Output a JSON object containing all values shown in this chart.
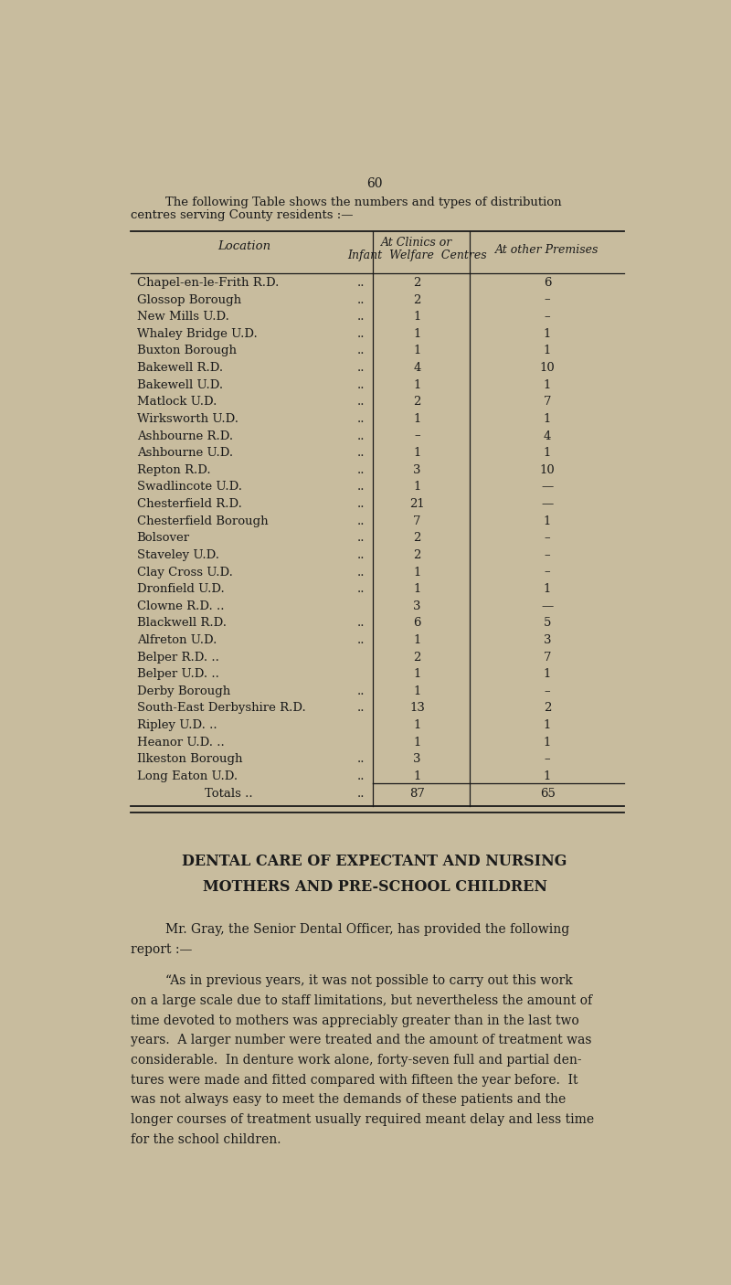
{
  "page_number": "60",
  "intro_text_line1": "The following Table shows the numbers and types of distribution",
  "intro_text_line2": "centres serving County residents :—",
  "col_header1_line1": "At Clinics or",
  "col_header1_line2": "Infant  Welfare  Centres",
  "col_header2": "At other Premises",
  "col_location": "Location",
  "table_rows": [
    [
      "Chapel-en-le-Frith R.D.",
      "..",
      "2",
      "6"
    ],
    [
      "Glossop Borough",
      "..",
      "2",
      "–"
    ],
    [
      "New Mills U.D.",
      "..",
      "1",
      "–"
    ],
    [
      "Whaley Bridge U.D.",
      "..",
      "1",
      "1"
    ],
    [
      "Buxton Borough",
      "..",
      "1",
      "1"
    ],
    [
      "Bakewell R.D.",
      "..",
      "4",
      "10"
    ],
    [
      "Bakewell U.D.",
      "..",
      "1",
      "1"
    ],
    [
      "Matlock U.D.",
      "..",
      "2",
      "7"
    ],
    [
      "Wirksworth U.D.",
      "..",
      "1",
      "1"
    ],
    [
      "Ashbourne R.D.",
      "..",
      "–",
      "4"
    ],
    [
      "Ashbourne U.D.",
      "..",
      "1",
      "1"
    ],
    [
      "Repton R.D.",
      "..",
      "3",
      "10"
    ],
    [
      "Swadlincote U.D.",
      "..",
      "1",
      "—"
    ],
    [
      "Chesterfield R.D.",
      "..",
      "21",
      "—"
    ],
    [
      "Chesterfield Borough",
      "..",
      "7",
      "1"
    ],
    [
      "Bolsover",
      "..",
      "2",
      "–"
    ],
    [
      "Staveley U.D.",
      "..",
      "2",
      "–"
    ],
    [
      "Clay Cross U.D.",
      "..",
      "1",
      "–"
    ],
    [
      "Dronfield U.D.",
      "..",
      "1",
      "1"
    ],
    [
      "Clowne R.D. ..",
      "..",
      "3",
      "—"
    ],
    [
      "Blackwell R.D.",
      "..",
      "6",
      "5"
    ],
    [
      "Alfreton U.D.",
      "..",
      "1",
      "3"
    ],
    [
      "Belper R.D. ..",
      "..",
      "2",
      "7"
    ],
    [
      "Belper U.D. ..",
      "..",
      "1",
      "1"
    ],
    [
      "Derby Borough",
      "..",
      "1",
      "–"
    ],
    [
      "South-East Derbyshire R.D.",
      "..",
      "13",
      "2"
    ],
    [
      "Ripley U.D. ..",
      "..",
      "1",
      "1"
    ],
    [
      "Heanor U.D. ..",
      "..",
      "1",
      "1"
    ],
    [
      "Ilkeston Borough",
      "..",
      "3",
      "–"
    ],
    [
      "Long Eaton U.D.",
      "..",
      "1",
      "1"
    ]
  ],
  "totals_label": "Totals ..",
  "totals_col1": "87",
  "totals_col2": "65",
  "section_title_line1": "DENTAL CARE OF EXPECTANT AND NURSING",
  "section_title_line2": "MOTHERS AND PRE-SCHOOL CHILDREN",
  "para1_line1": "Mr. Gray, the Senior Dental Officer, has provided the following",
  "para1_line2": "report :—",
  "para2_lines": [
    "“As in previous years, it was not possible to carry out this work",
    "on a large scale due to staff limitations, but nevertheless the amount of",
    "time devoted to mothers was appreciably greater than in the last two",
    "years.  A larger number were treated and the amount of treatment was",
    "considerable.  In denture work alone, forty-seven full and partial den-",
    "tures were made and fitted compared with fifteen the year before.  It",
    "was not always easy to meet the demands of these patients and the",
    "longer courses of treatment usually required meant delay and less time",
    "for the school children."
  ],
  "bg_color": "#c8bc9e",
  "text_color": "#1a1a1a",
  "font_size_body": 9.5,
  "font_size_header": 9.5,
  "font_size_title": 11.5,
  "font_size_page_num": 10
}
